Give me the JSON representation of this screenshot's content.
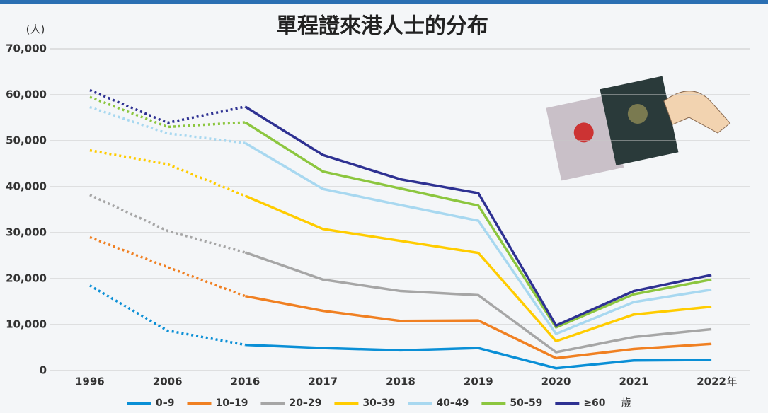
{
  "chart_data": {
    "type": "line",
    "title": "單程證來港人士的分布",
    "y_unit": "(人)",
    "x_unit": "年",
    "legend_suffix": "歲",
    "categories": [
      "1996",
      "2006",
      "2016",
      "2017",
      "2018",
      "2019",
      "2020",
      "2021",
      "2022"
    ],
    "dotted_segments": 2,
    "grid": true,
    "ylim": [
      0,
      70000
    ],
    "yticks": [
      0,
      {
        "value": 10000,
        "label": "10,000"
      },
      {
        "value": 20000,
        "label": "20,000"
      },
      {
        "value": 30000,
        "label": "30,000"
      },
      {
        "value": 40000,
        "label": "40,000"
      },
      {
        "value": 50000,
        "label": "50,000"
      },
      {
        "value": 60000,
        "label": "60,000"
      },
      {
        "value": 70000,
        "label": "70,000"
      }
    ],
    "series": [
      {
        "name": "0–9",
        "color": "#0a8fd6",
        "values": [
          18500,
          8700,
          5600,
          4900,
          4400,
          4900,
          500,
          2200,
          2300
        ]
      },
      {
        "name": "10–19",
        "color": "#f08022",
        "values": [
          29000,
          22500,
          16200,
          13000,
          10800,
          10900,
          2700,
          4700,
          5800
        ]
      },
      {
        "name": "20–29",
        "color": "#a6a6a6",
        "values": [
          38200,
          30400,
          25700,
          19800,
          17300,
          16400,
          4000,
          7300,
          9000
        ]
      },
      {
        "name": "30–39",
        "color": "#ffcc00",
        "values": [
          47900,
          44900,
          38000,
          30800,
          28200,
          25600,
          6400,
          12200,
          13900
        ]
      },
      {
        "name": "40–49",
        "color": "#a8d8f0",
        "values": [
          57300,
          51600,
          49500,
          39500,
          36000,
          32600,
          8000,
          14900,
          17600
        ]
      },
      {
        "name": "50–59",
        "color": "#8cc63f",
        "values": [
          59500,
          53000,
          54000,
          43300,
          39600,
          35900,
          9400,
          16600,
          19800
        ]
      },
      {
        "name": "≥60",
        "color": "#2e3192",
        "values": [
          61000,
          53900,
          57400,
          46900,
          41600,
          38600,
          9800,
          17300,
          20800
        ]
      }
    ]
  }
}
